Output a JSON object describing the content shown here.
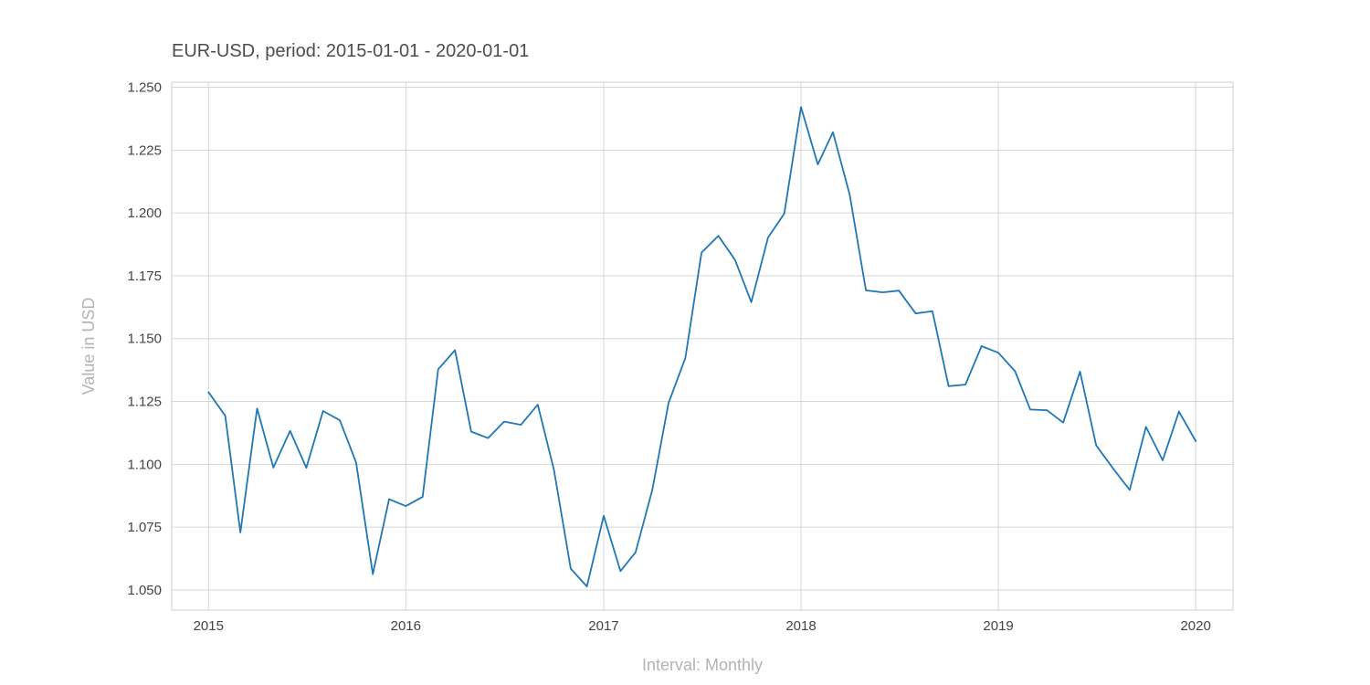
{
  "chart_data": {
    "type": "line",
    "title": "EUR-USD, period: 2015-01-01 - 2020-01-01",
    "xlabel": "Interval: Monthly",
    "ylabel": "Value in USD",
    "x_ticks": [
      2015,
      2016,
      2017,
      2018,
      2019,
      2020
    ],
    "y_ticks": [
      "1.050",
      "1.075",
      "1.100",
      "1.125",
      "1.150",
      "1.175",
      "1.200",
      "1.225",
      "1.250"
    ],
    "xlim": [
      "2014-10-25",
      "2020-03-10"
    ],
    "ylim": [
      1.042,
      1.252
    ],
    "grid": true,
    "series_color": "#1f77b4",
    "series": [
      {
        "x": [
          "2015-01-01",
          "2015-02-01",
          "2015-03-01",
          "2015-04-01",
          "2015-05-01",
          "2015-06-01",
          "2015-07-01",
          "2015-08-01",
          "2015-09-01",
          "2015-10-01",
          "2015-11-01",
          "2015-12-01",
          "2016-01-01",
          "2016-02-01",
          "2016-03-01",
          "2016-04-01",
          "2016-05-01",
          "2016-06-01",
          "2016-07-01",
          "2016-08-01",
          "2016-09-01",
          "2016-10-01",
          "2016-11-01",
          "2016-12-01",
          "2017-01-01",
          "2017-02-01",
          "2017-03-01",
          "2017-04-01",
          "2017-05-01",
          "2017-06-01",
          "2017-07-01",
          "2017-08-01",
          "2017-09-01",
          "2017-10-01",
          "2017-11-01",
          "2017-12-01",
          "2018-01-01",
          "2018-02-01",
          "2018-03-01",
          "2018-04-01",
          "2018-05-01",
          "2018-06-01",
          "2018-07-01",
          "2018-08-01",
          "2018-09-01",
          "2018-10-01",
          "2018-11-01",
          "2018-12-01",
          "2019-01-01",
          "2019-02-01",
          "2019-03-01",
          "2019-04-01",
          "2019-05-01",
          "2019-06-01",
          "2019-07-01",
          "2019-08-01",
          "2019-09-01",
          "2019-10-01",
          "2019-11-01",
          "2019-12-01",
          "2020-01-01"
        ],
        "values": [
          1.1287,
          1.1193,
          1.0729,
          1.1222,
          1.0987,
          1.1133,
          1.0986,
          1.1212,
          1.1175,
          1.1007,
          1.0563,
          1.0861,
          1.0834,
          1.087,
          1.1378,
          1.1454,
          1.113,
          1.1104,
          1.117,
          1.1157,
          1.1237,
          1.0978,
          1.0585,
          1.0514,
          1.0795,
          1.0575,
          1.065,
          1.0898,
          1.1244,
          1.1423,
          1.1842,
          1.1909,
          1.1813,
          1.1645,
          1.1902,
          1.1997,
          1.2421,
          1.2193,
          1.2321,
          1.2073,
          1.1692,
          1.1684,
          1.1691,
          1.16,
          1.1609,
          1.1311,
          1.1317,
          1.147,
          1.1444,
          1.137,
          1.1218,
          1.1215,
          1.1166,
          1.1369,
          1.1075,
          1.0984,
          1.0898,
          1.1149,
          1.1016,
          1.121,
          1.1092
        ]
      }
    ]
  }
}
